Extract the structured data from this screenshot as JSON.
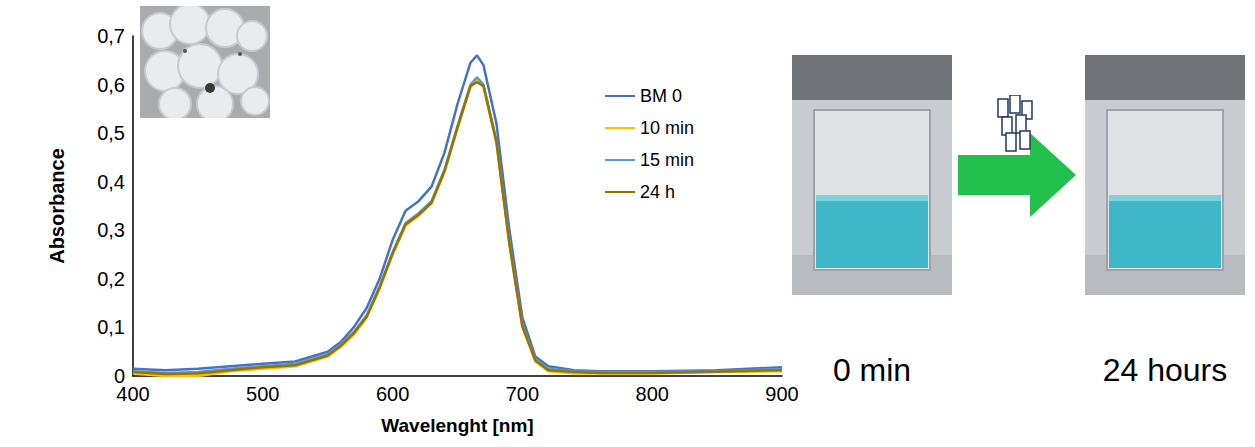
{
  "chart_data": {
    "type": "line",
    "x_label": "Wavelenght [nm]",
    "y_label": "Absorbance",
    "x": [
      400,
      425,
      450,
      475,
      500,
      525,
      550,
      560,
      570,
      580,
      590,
      600,
      610,
      620,
      630,
      640,
      650,
      660,
      665,
      670,
      680,
      690,
      700,
      710,
      720,
      740,
      760,
      800,
      850,
      900
    ],
    "series": [
      {
        "name": "BM 0",
        "color": "#4472c4",
        "values": [
          0.015,
          0.012,
          0.015,
          0.02,
          0.025,
          0.03,
          0.05,
          0.07,
          0.1,
          0.14,
          0.2,
          0.28,
          0.34,
          0.36,
          0.39,
          0.46,
          0.56,
          0.645,
          0.66,
          0.64,
          0.52,
          0.3,
          0.12,
          0.04,
          0.02,
          0.012,
          0.01,
          0.01,
          0.012,
          0.018
        ]
      },
      {
        "name": "10 min",
        "color": "#ffc000",
        "values": [
          0.005,
          0.0,
          0.0,
          0.01,
          0.015,
          0.02,
          0.04,
          0.06,
          0.085,
          0.12,
          0.18,
          0.25,
          0.31,
          0.33,
          0.355,
          0.42,
          0.51,
          0.595,
          0.61,
          0.595,
          0.48,
          0.27,
          0.1,
          0.03,
          0.01,
          0.005,
          0.005,
          0.005,
          0.008,
          0.01
        ]
      },
      {
        "name": "15 min",
        "color": "#5b9bd5",
        "values": [
          0.01,
          0.006,
          0.008,
          0.015,
          0.02,
          0.025,
          0.045,
          0.065,
          0.09,
          0.125,
          0.185,
          0.255,
          0.315,
          0.335,
          0.36,
          0.425,
          0.515,
          0.6,
          0.615,
          0.6,
          0.485,
          0.275,
          0.105,
          0.035,
          0.015,
          0.01,
          0.008,
          0.008,
          0.01,
          0.014
        ]
      },
      {
        "name": "24 h",
        "color": "#997300",
        "values": [
          0.008,
          0.004,
          0.005,
          0.012,
          0.018,
          0.022,
          0.042,
          0.062,
          0.088,
          0.122,
          0.182,
          0.252,
          0.312,
          0.332,
          0.357,
          0.422,
          0.512,
          0.597,
          0.605,
          0.597,
          0.482,
          0.272,
          0.102,
          0.032,
          0.012,
          0.008,
          0.006,
          0.006,
          0.009,
          0.012
        ]
      }
    ],
    "xlim": [
      400,
      900
    ],
    "xticks": [
      400,
      500,
      600,
      700,
      800,
      900
    ],
    "ylim": [
      0,
      0.7
    ],
    "yticks": [
      0,
      {
        "value": 0.1,
        "label": "0,1"
      },
      {
        "value": 0.2,
        "label": "0,2"
      },
      {
        "value": 0.3,
        "label": "0,3"
      },
      {
        "value": 0.4,
        "label": "0,4"
      },
      {
        "value": 0.5,
        "label": "0,5"
      },
      {
        "value": 0.6,
        "label": "0,6"
      },
      {
        "value": 0.7,
        "label": "0,7"
      }
    ],
    "grid": false,
    "legend": "right",
    "annotations": [
      "0 min",
      "24 hours"
    ]
  }
}
